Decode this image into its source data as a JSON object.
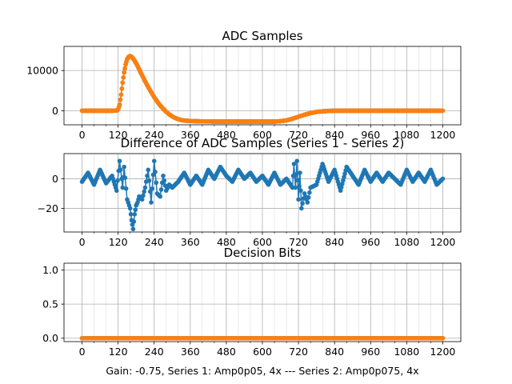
{
  "figure": {
    "caption": "Gain: -0.75, Series 1: Amp0p05, 4x --- Series 2: Amp0p075, 4x"
  },
  "colors": {
    "series1": "#1f77b4",
    "series2": "#ff7f0e",
    "grid": "#b0b0b0",
    "axis": "#000000"
  },
  "chart_data": [
    {
      "type": "line",
      "title": "ADC Samples",
      "xlabel": "",
      "ylabel": "",
      "xlim": [
        -60,
        1260
      ],
      "ylim": [
        -3500,
        16000
      ],
      "xticks": [
        0,
        120,
        240,
        360,
        480,
        600,
        720,
        840,
        960,
        1080,
        1200
      ],
      "xticklabels": [
        "0",
        "120",
        "240",
        "360",
        "480",
        "600",
        "720",
        "840",
        "960",
        "1080",
        "1200"
      ],
      "yticks": [
        0,
        10000
      ],
      "yticklabels": [
        "0",
        "10000"
      ],
      "grid": true,
      "markers": true,
      "series": [
        {
          "name": "Series 1",
          "color": "#1f77b4",
          "x": [
            0,
            100,
            115,
            120,
            125,
            130,
            135,
            140,
            145,
            150,
            155,
            160,
            165,
            170,
            175,
            180,
            185,
            190,
            195,
            200,
            210,
            220,
            230,
            240,
            250,
            260,
            270,
            280,
            290,
            300,
            310,
            320,
            330,
            340,
            360,
            380,
            400,
            450,
            500,
            550,
            600,
            640,
            660,
            680,
            700,
            720,
            740,
            760,
            780,
            800,
            820,
            840,
            900,
            1000,
            1100,
            1200
          ],
          "y": [
            0,
            0,
            50,
            300,
            1500,
            4000,
            7000,
            9500,
            11500,
            12800,
            13400,
            13600,
            13400,
            13000,
            12400,
            11800,
            11100,
            10300,
            9500,
            8800,
            7300,
            5900,
            4600,
            3400,
            2300,
            1300,
            500,
            -300,
            -900,
            -1400,
            -1800,
            -2100,
            -2300,
            -2450,
            -2550,
            -2600,
            -2650,
            -2700,
            -2700,
            -2700,
            -2700,
            -2700,
            -2600,
            -2400,
            -2000,
            -1500,
            -1000,
            -600,
            -300,
            -150,
            -50,
            0,
            0,
            0,
            0,
            0
          ]
        },
        {
          "name": "Series 2",
          "color": "#ff7f0e",
          "x": [
            0,
            100,
            115,
            120,
            125,
            130,
            135,
            140,
            145,
            150,
            155,
            160,
            165,
            170,
            175,
            180,
            185,
            190,
            195,
            200,
            210,
            220,
            230,
            240,
            250,
            260,
            270,
            280,
            290,
            300,
            310,
            320,
            330,
            340,
            360,
            380,
            400,
            450,
            500,
            550,
            600,
            640,
            660,
            680,
            700,
            720,
            740,
            760,
            780,
            800,
            820,
            840,
            900,
            1000,
            1100,
            1200
          ],
          "y": [
            0,
            0,
            50,
            300,
            1500,
            4000,
            7000,
            9500,
            11500,
            12800,
            13400,
            13600,
            13400,
            13000,
            12400,
            11800,
            11100,
            10300,
            9500,
            8800,
            7300,
            5900,
            4600,
            3400,
            2300,
            1300,
            500,
            -300,
            -900,
            -1400,
            -1800,
            -2100,
            -2300,
            -2450,
            -2550,
            -2600,
            -2650,
            -2700,
            -2700,
            -2700,
            -2700,
            -2700,
            -2600,
            -2400,
            -2000,
            -1500,
            -1000,
            -600,
            -300,
            -150,
            -50,
            0,
            0,
            0,
            0,
            0
          ]
        }
      ]
    },
    {
      "type": "line",
      "title": "Difference of ADC Samples (Series 1 - Series 2)",
      "xlabel": "",
      "ylabel": "",
      "xlim": [
        -60,
        1260
      ],
      "ylim": [
        -36,
        17
      ],
      "xticks": [
        0,
        120,
        240,
        360,
        480,
        600,
        720,
        840,
        960,
        1080,
        1200
      ],
      "xticklabels": [
        "0",
        "120",
        "240",
        "360",
        "480",
        "600",
        "720",
        "840",
        "960",
        "1080",
        "1200"
      ],
      "yticks": [
        -20,
        0
      ],
      "yticklabels": [
        "−20",
        "0"
      ],
      "grid": true,
      "markers": true,
      "series": [
        {
          "name": "Series 1 - Series 2",
          "color": "#1f77b4",
          "x": [
            0,
            20,
            40,
            60,
            80,
            100,
            115,
            125,
            135,
            140,
            150,
            160,
            165,
            170,
            175,
            180,
            185,
            190,
            200,
            210,
            220,
            230,
            240,
            250,
            260,
            270,
            280,
            290,
            300,
            320,
            340,
            360,
            380,
            400,
            420,
            440,
            460,
            480,
            500,
            520,
            540,
            560,
            580,
            600,
            620,
            640,
            660,
            680,
            700,
            705,
            710,
            715,
            720,
            725,
            730,
            740,
            750,
            760,
            780,
            800,
            820,
            840,
            860,
            880,
            900,
            920,
            940,
            960,
            980,
            1000,
            1020,
            1040,
            1060,
            1080,
            1100,
            1120,
            1140,
            1160,
            1180,
            1200
          ],
          "y": [
            -2,
            4,
            -4,
            6,
            -3,
            2,
            -8,
            12,
            -6,
            8,
            -14,
            -20,
            -28,
            -34,
            -24,
            -18,
            -16,
            -12,
            -14,
            -6,
            6,
            -16,
            12,
            -10,
            -12,
            2,
            -8,
            -4,
            -6,
            -2,
            4,
            -4,
            2,
            -4,
            6,
            0,
            8,
            2,
            -2,
            6,
            0,
            4,
            -2,
            2,
            -4,
            4,
            -4,
            0,
            -6,
            10,
            -6,
            12,
            -14,
            4,
            -20,
            -10,
            -16,
            -6,
            -4,
            10,
            -2,
            6,
            -8,
            8,
            2,
            -4,
            6,
            -2,
            4,
            -2,
            4,
            0,
            -4,
            6,
            -2,
            4,
            -2,
            6,
            -4,
            0
          ]
        }
      ]
    },
    {
      "type": "line",
      "title": "Decision Bits",
      "xlabel": "Gain: -0.75, Series 1: Amp0p05, 4x --- Series 2: Amp0p075, 4x",
      "ylabel": "",
      "xlim": [
        -60,
        1260
      ],
      "ylim": [
        -0.05,
        1.1
      ],
      "xticks": [
        0,
        120,
        240,
        360,
        480,
        600,
        720,
        840,
        960,
        1080,
        1200
      ],
      "xticklabels": [
        "0",
        "120",
        "240",
        "360",
        "480",
        "600",
        "720",
        "840",
        "960",
        "1080",
        "1200"
      ],
      "yticks": [
        0.0,
        0.5,
        1.0
      ],
      "yticklabels": [
        "0.0",
        "0.5",
        "1.0"
      ],
      "grid": true,
      "markers": true,
      "series": [
        {
          "name": "Series 1",
          "color": "#1f77b4",
          "x": [
            0,
            1200
          ],
          "y": [
            0,
            0
          ]
        },
        {
          "name": "Series 2",
          "color": "#ff7f0e",
          "x": [
            0,
            1200
          ],
          "y": [
            0,
            0
          ]
        }
      ]
    }
  ]
}
